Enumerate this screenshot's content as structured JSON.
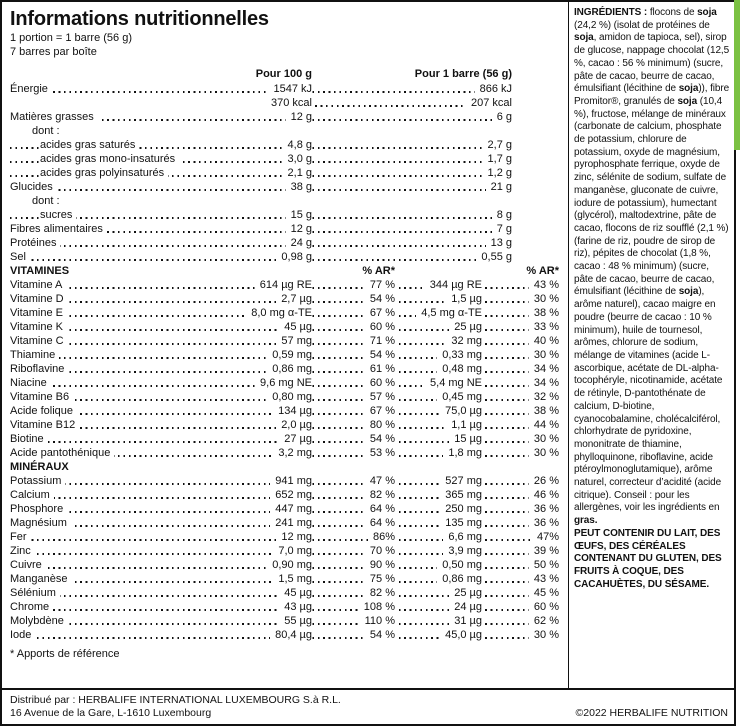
{
  "colors": {
    "accent_green": "#7bc143",
    "border": "#111111",
    "text": "#111111"
  },
  "label": {
    "title": "Informations nutritionnelles",
    "serving_line1": "1 portion = 1 barre (56 g)",
    "serving_line2": "7 barres par boîte",
    "col_per100": "Pour 100 g",
    "col_perbar": "Pour 1 barre (56 g)",
    "footnote": "* Apports de référence"
  },
  "table": {
    "rows": [
      {
        "type": "macro2",
        "label": "Énergie",
        "v100": "1547 kJ",
        "v56": "866 kJ"
      },
      {
        "type": "kcal",
        "v100": "370 kcal",
        "v56": "207 kcal"
      },
      {
        "type": "macro2",
        "label": "Matières grasses",
        "v100": "12 g",
        "v56": "6 g"
      },
      {
        "type": "plain",
        "indent": 1,
        "label": "dont :"
      },
      {
        "type": "macro2",
        "indent": 2,
        "label": "acides gras saturés",
        "v100": "4,8 g",
        "v56": "2,7 g"
      },
      {
        "type": "macro2",
        "indent": 2,
        "label": "acides gras mono-insaturés",
        "v100": "3,0 g",
        "v56": "1,7 g"
      },
      {
        "type": "macro2",
        "indent": 2,
        "label": "acides gras polyinsaturés",
        "v100": "2,1 g",
        "v56": "1,2 g"
      },
      {
        "type": "macro2",
        "label": "Glucides",
        "v100": "38 g",
        "v56": "21 g"
      },
      {
        "type": "plain",
        "indent": 1,
        "label": "dont :"
      },
      {
        "type": "macro2",
        "indent": 2,
        "label": "sucres",
        "v100": "15 g",
        "v56": "8 g"
      },
      {
        "type": "macro2",
        "label": "Fibres alimentaires",
        "v100": "12 g",
        "v56": "7 g"
      },
      {
        "type": "macro2",
        "label": "Protéines",
        "v100": "24 g",
        "v56": "13 g"
      },
      {
        "type": "macro2",
        "label": "Sel",
        "v100": "0,98 g",
        "v56": "0,55 g"
      },
      {
        "type": "sechdr2",
        "label": "VITAMINES",
        "p100": "% AR*",
        "p56": "% AR*"
      },
      {
        "type": "vit4",
        "label": "Vitamine A",
        "v100": "614 µg RE",
        "p100": "77 %",
        "v56": "344 µg RE",
        "p56": "43 %"
      },
      {
        "type": "vit4",
        "label": "Vitamine D",
        "v100": "2,7 µg",
        "p100": "54 %",
        "v56": "1,5 µg",
        "p56": "30 %"
      },
      {
        "type": "vit4",
        "label": "Vitamine E",
        "v100": "8,0 mg α-TE",
        "p100": "67 %",
        "v56": "4,5 mg α-TE",
        "p56": "38 %"
      },
      {
        "type": "vit4",
        "label": "Vitamine K",
        "v100": "45 µg",
        "p100": "60 %",
        "v56": "25 µg",
        "p56": "33 %"
      },
      {
        "type": "vit4",
        "label": "Vitamine C",
        "v100": "57 mg",
        "p100": "71 %",
        "v56": "32 mg",
        "p56": "40 %"
      },
      {
        "type": "vit4",
        "label": "Thiamine",
        "v100": "0,59 mg",
        "p100": "54 %",
        "v56": "0,33 mg",
        "p56": "30 %"
      },
      {
        "type": "vit4",
        "label": "Riboflavine",
        "v100": "0,86 mg",
        "p100": "61 %",
        "v56": "0,48 mg",
        "p56": "34 %"
      },
      {
        "type": "vit4",
        "label": "Niacine",
        "v100": "9,6 mg NE",
        "p100": "60 %",
        "v56": "5,4 mg NE",
        "p56": "34 %"
      },
      {
        "type": "vit4",
        "label": "Vitamine B6",
        "v100": "0,80 mg",
        "p100": "57 %",
        "v56": "0,45 mg",
        "p56": "32 %"
      },
      {
        "type": "vit4",
        "label": "Acide folique",
        "v100": "134 µg",
        "p100": "67 %",
        "v56": "75,0 µg",
        "p56": "38 %"
      },
      {
        "type": "vit4",
        "label": "Vitamine B12",
        "v100": "2,0 µg",
        "p100": "80 %",
        "v56": "1,1 µg",
        "p56": "44 %"
      },
      {
        "type": "vit4",
        "label": "Biotine",
        "v100": "27 µg",
        "p100": "54 %",
        "v56": "15 µg",
        "p56": "30 %"
      },
      {
        "type": "vit4",
        "label": "Acide pantothénique",
        "v100": "3,2 mg",
        "p100": "53 %",
        "v56": "1,8 mg",
        "p56": "30 %"
      },
      {
        "type": "sechdr",
        "label": "MINÉRAUX"
      },
      {
        "type": "vit4",
        "label": "Potassium",
        "v100": "941 mg",
        "p100": "47 %",
        "v56": "527 mg",
        "p56": "26 %"
      },
      {
        "type": "vit4",
        "label": "Calcium",
        "v100": "652 mg",
        "p100": "82 %",
        "v56": "365 mg",
        "p56": "46 %"
      },
      {
        "type": "vit4",
        "label": "Phosphore",
        "v100": "447 mg",
        "p100": "64 %",
        "v56": "250 mg",
        "p56": "36 %"
      },
      {
        "type": "vit4",
        "label": "Magnésium",
        "v100": "241 mg",
        "p100": "64 %",
        "v56": "135 mg",
        "p56": "36 %"
      },
      {
        "type": "vit4",
        "label": "Fer",
        "v100": "12 mg",
        "p100": "86%",
        "v56": "6,6 mg",
        "p56": "47%"
      },
      {
        "type": "vit4",
        "label": "Zinc",
        "v100": "7,0 mg",
        "p100": "70 %",
        "v56": "3,9 mg",
        "p56": "39 %"
      },
      {
        "type": "vit4",
        "label": "Cuivre",
        "v100": "0,90 mg",
        "p100": "90 %",
        "v56": "0,50 mg",
        "p56": "50 %"
      },
      {
        "type": "vit4",
        "label": "Manganèse",
        "v100": "1,5 mg",
        "p100": "75 %",
        "v56": "0,86 mg",
        "p56": "43 %"
      },
      {
        "type": "vit4",
        "label": "Sélénium",
        "v100": "45 µg",
        "p100": "82 %",
        "v56": "25 µg",
        "p56": "45 %"
      },
      {
        "type": "vit4",
        "label": "Chrome",
        "v100": "43 µg",
        "p100": "108 %",
        "v56": "24 µg",
        "p56": "60 %"
      },
      {
        "type": "vit4",
        "label": "Molybdène",
        "v100": "55 µg",
        "p100": "110 %",
        "v56": "31 µg",
        "p56": "62 %"
      },
      {
        "type": "vit4",
        "label": "Iode",
        "v100": "80,4 µg",
        "p100": "54 %",
        "v56": "45,0 µg",
        "p56": "30 %"
      }
    ]
  },
  "ingredients": {
    "runs": [
      {
        "b": 1,
        "t": "INGRÉDIENTS : "
      },
      {
        "b": 0,
        "t": "flocons de "
      },
      {
        "b": 1,
        "t": "soja"
      },
      {
        "b": 0,
        "t": " (24,2 %) (isolat de protéines de "
      },
      {
        "b": 1,
        "t": "soja"
      },
      {
        "b": 0,
        "t": ", amidon de tapioca, sel), sirop de glucose, nappage chocolat (12,5 %, cacao : 56 % minimum) (sucre, pâte de cacao, beurre de cacao, émulsifiant (lécithine de "
      },
      {
        "b": 1,
        "t": "soja"
      },
      {
        "b": 0,
        "t": ")), fibre Promitor®, granulés de "
      },
      {
        "b": 1,
        "t": "soja"
      },
      {
        "b": 0,
        "t": " (10,4 %), fructose, mélange de minéraux (carbonate de calcium, phosphate de potassium, chlorure de potassium, oxyde de magnésium, pyrophosphate ferrique, oxyde de zinc, sélénite de sodium, sulfate de manganèse, gluconate de cuivre, iodure de potassium), humectant (glycérol), maltodextrine, pâte de cacao, flocons de riz soufflé (2,1 %) (farine de riz, poudre de sirop de riz), pépites de chocolat (1,8 %, cacao : 48 % minimum) (sucre, pâte de cacao, beurre de cacao, émulsifiant (lécithine de "
      },
      {
        "b": 1,
        "t": "soja"
      },
      {
        "b": 0,
        "t": "), arôme naturel), cacao maigre en poudre (beurre de cacao : 10 % minimum), huile de tournesol, arômes, chlorure de sodium, mélange de vitamines (acide L-ascorbique, acétate de DL-alpha-tocophéryle, nicotinamide, acétate de rétinyle, D-pantothénate de calcium, D-biotine, cyanocobalamine, cholécalciférol, chlorhydrate de pyridoxine, mononitrate de thiamine, phylloquinone, riboflavine, acide ptéroylmonoglutamique), arôme naturel, correcteur d’acidité (acide citrique). Conseil : pour les allergènes, voir les ingrédients en "
      },
      {
        "b": 1,
        "t": "gras."
      }
    ],
    "allergen": "PEUT CONTENIR DU LAIT, DES ŒUFS, DES CÉRÉALES CONTENANT DU GLUTEN, DES FRUITS À COQUE, DES CACAHUÈTES, DU SÉSAME."
  },
  "footer": {
    "line1": "Distribué par : HERBALIFE INTERNATIONAL LUXEMBOURG S.à R.L.",
    "line2": "16 Avenue de la Gare, L-1610 Luxembourg",
    "copyright": "©2022 HERBALIFE NUTRITION"
  }
}
